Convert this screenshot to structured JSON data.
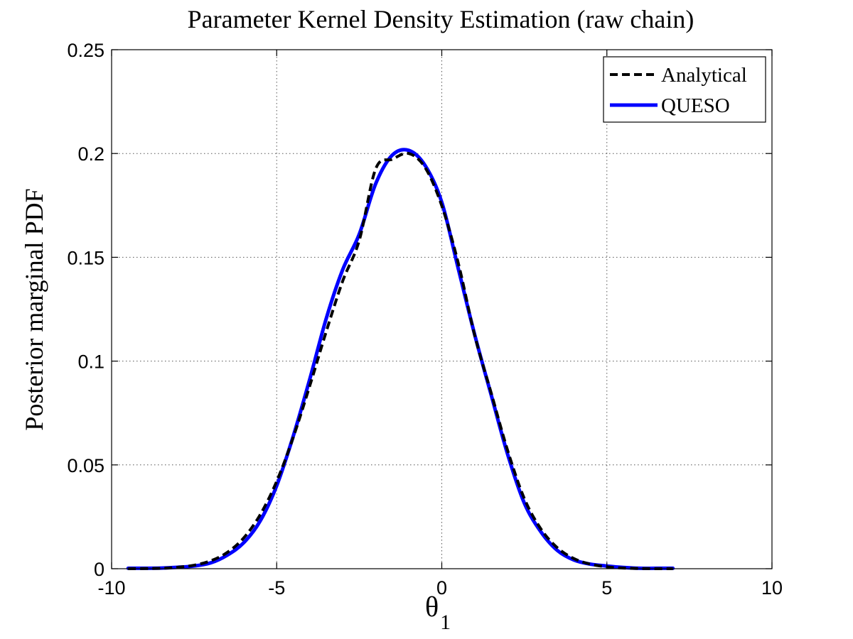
{
  "chart_data": {
    "type": "line",
    "title": "Parameter Kernel Density Estimation (raw chain)",
    "ylabel": "Posterior marginal PDF",
    "xlabel": {
      "base": "θ",
      "subscript": "1"
    },
    "xlim": [
      -10,
      10
    ],
    "ylim": [
      0,
      0.25
    ],
    "xticks": [
      -10,
      -5,
      0,
      5,
      10
    ],
    "xtick_labels": [
      "-10",
      "-5",
      "0",
      "5",
      "10"
    ],
    "yticks": [
      0,
      0.05,
      0.1,
      0.15,
      0.2,
      0.25
    ],
    "ytick_labels": [
      "0",
      "0.05",
      "0.1",
      "0.15",
      "0.2",
      "0.25"
    ],
    "grid": true,
    "legend_position": "top-right",
    "series": [
      {
        "name": "Analytical",
        "color": "#000000",
        "style": "dashed",
        "x": [
          -9.5,
          -8.5,
          -8.0,
          -7.5,
          -7.0,
          -6.5,
          -6.0,
          -5.5,
          -5.0,
          -4.5,
          -4.0,
          -3.5,
          -3.0,
          -2.5,
          -2.0,
          -1.5,
          -1.0,
          -0.5,
          0.0,
          0.5,
          1.0,
          1.5,
          2.0,
          2.5,
          3.0,
          3.5,
          4.0,
          4.5,
          5.0,
          5.5,
          6.0,
          6.5,
          7.0
        ],
        "y": [
          0.0,
          0.0002,
          0.0007,
          0.0017,
          0.0038,
          0.0078,
          0.0148,
          0.026,
          0.0421,
          0.0632,
          0.088,
          0.1142,
          0.1386,
          0.1581,
          0.1927,
          0.1972,
          0.2,
          0.1931,
          0.1748,
          0.1472,
          0.1122,
          0.0845,
          0.0567,
          0.0338,
          0.0192,
          0.0101,
          0.0049,
          0.0022,
          0.0009,
          0.0003,
          0.0001,
          0.0,
          0.0
        ]
      },
      {
        "name": "QUESO",
        "color": "#0000ff",
        "style": "solid",
        "x": [
          -9.5,
          -8.5,
          -8.0,
          -7.5,
          -7.0,
          -6.5,
          -6.0,
          -5.5,
          -5.0,
          -4.5,
          -4.0,
          -3.5,
          -3.0,
          -2.5,
          -2.0,
          -1.5,
          -1.0,
          -0.5,
          0.0,
          0.5,
          1.0,
          1.5,
          2.0,
          2.5,
          3.0,
          3.5,
          4.0,
          4.5,
          5.0,
          5.5,
          6.0,
          6.5,
          7.0
        ],
        "y": [
          0.0002,
          0.0003,
          0.0007,
          0.0013,
          0.0028,
          0.0065,
          0.0125,
          0.023,
          0.04,
          0.0638,
          0.0912,
          0.1205,
          0.1441,
          0.1611,
          0.1855,
          0.1992,
          0.2015,
          0.1941,
          0.1765,
          0.1445,
          0.1125,
          0.0835,
          0.0548,
          0.0316,
          0.0178,
          0.0088,
          0.0042,
          0.0022,
          0.0013,
          0.0006,
          0.0002,
          0.0002,
          0.0002
        ]
      }
    ]
  },
  "colors": {
    "background": "#ffffff",
    "axis": "#000000",
    "grid": "#555555"
  }
}
